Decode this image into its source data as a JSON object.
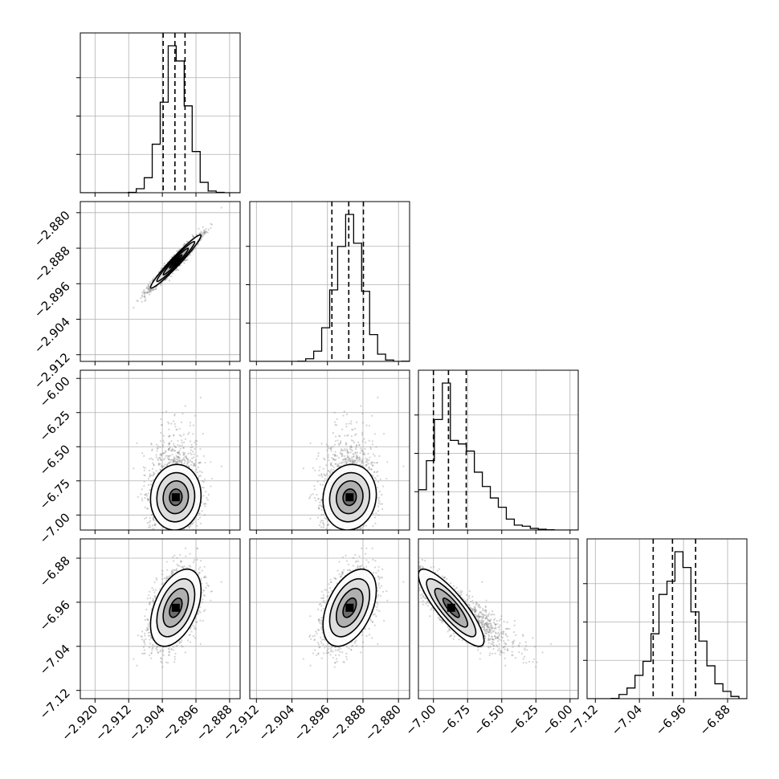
{
  "chart_data": {
    "type": "corner",
    "parameters": [
      {
        "range": [
          -2.9235,
          -2.8855
        ],
        "ticks": [
          -2.92,
          -2.912,
          -2.904,
          -2.896,
          -2.888
        ],
        "tick_labels": [
          "−2.920",
          "−2.912",
          "−2.904",
          "−2.896",
          "−2.888"
        ],
        "mean": -2.9008,
        "sd": 0.003,
        "quantiles": [
          -2.9038,
          -2.901,
          -2.8986
        ]
      },
      {
        "range": [
          -2.9135,
          -2.8775
        ],
        "ticks": [
          -2.912,
          -2.904,
          -2.896,
          -2.888,
          -2.88
        ],
        "tick_labels": [
          "−2.912",
          "−2.904",
          "−2.896",
          "−2.888",
          "−2.880"
        ],
        "mean": -2.891,
        "sd": 0.003,
        "quantiles": [
          -2.895,
          -2.8912,
          -2.8879
        ]
      },
      {
        "range": [
          -7.11,
          -5.94
        ],
        "ticks": [
          -7.0,
          -6.75,
          -6.5,
          -6.25,
          -6.0
        ],
        "tick_labels": [
          "−7.00",
          "−6.75",
          "−6.50",
          "−6.25",
          "−6.00"
        ],
        "mean": -6.87,
        "sd": 0.12,
        "quantiles": [
          -7.0,
          -6.89,
          -6.76
        ]
      },
      {
        "range": [
          -7.135,
          -6.845
        ],
        "ticks": [
          -7.12,
          -7.04,
          -6.96,
          -6.88
        ],
        "tick_labels": [
          "−7.12",
          "−7.04",
          "−6.96",
          "−6.88"
        ],
        "mean": -6.97,
        "sd": 0.035,
        "quantiles": [
          -7.015,
          -6.98,
          -6.938
        ]
      }
    ],
    "correlations": [
      [
        1.0,
        0.97,
        0.05,
        0.45
      ],
      [
        0.97,
        1.0,
        0.08,
        0.45
      ],
      [
        0.05,
        0.08,
        1.0,
        -0.85
      ],
      [
        0.45,
        0.45,
        -0.85,
        1.0
      ]
    ],
    "histogram_bins": 20,
    "contour_levels": [
      "0.5-sigma",
      "1-sigma",
      "1.5-sigma",
      "2-sigma"
    ],
    "quantile_lines": "dashed",
    "grid": true,
    "colors": {
      "line": "#000000",
      "points": "#808080",
      "grid": "#b0b0b0"
    }
  }
}
